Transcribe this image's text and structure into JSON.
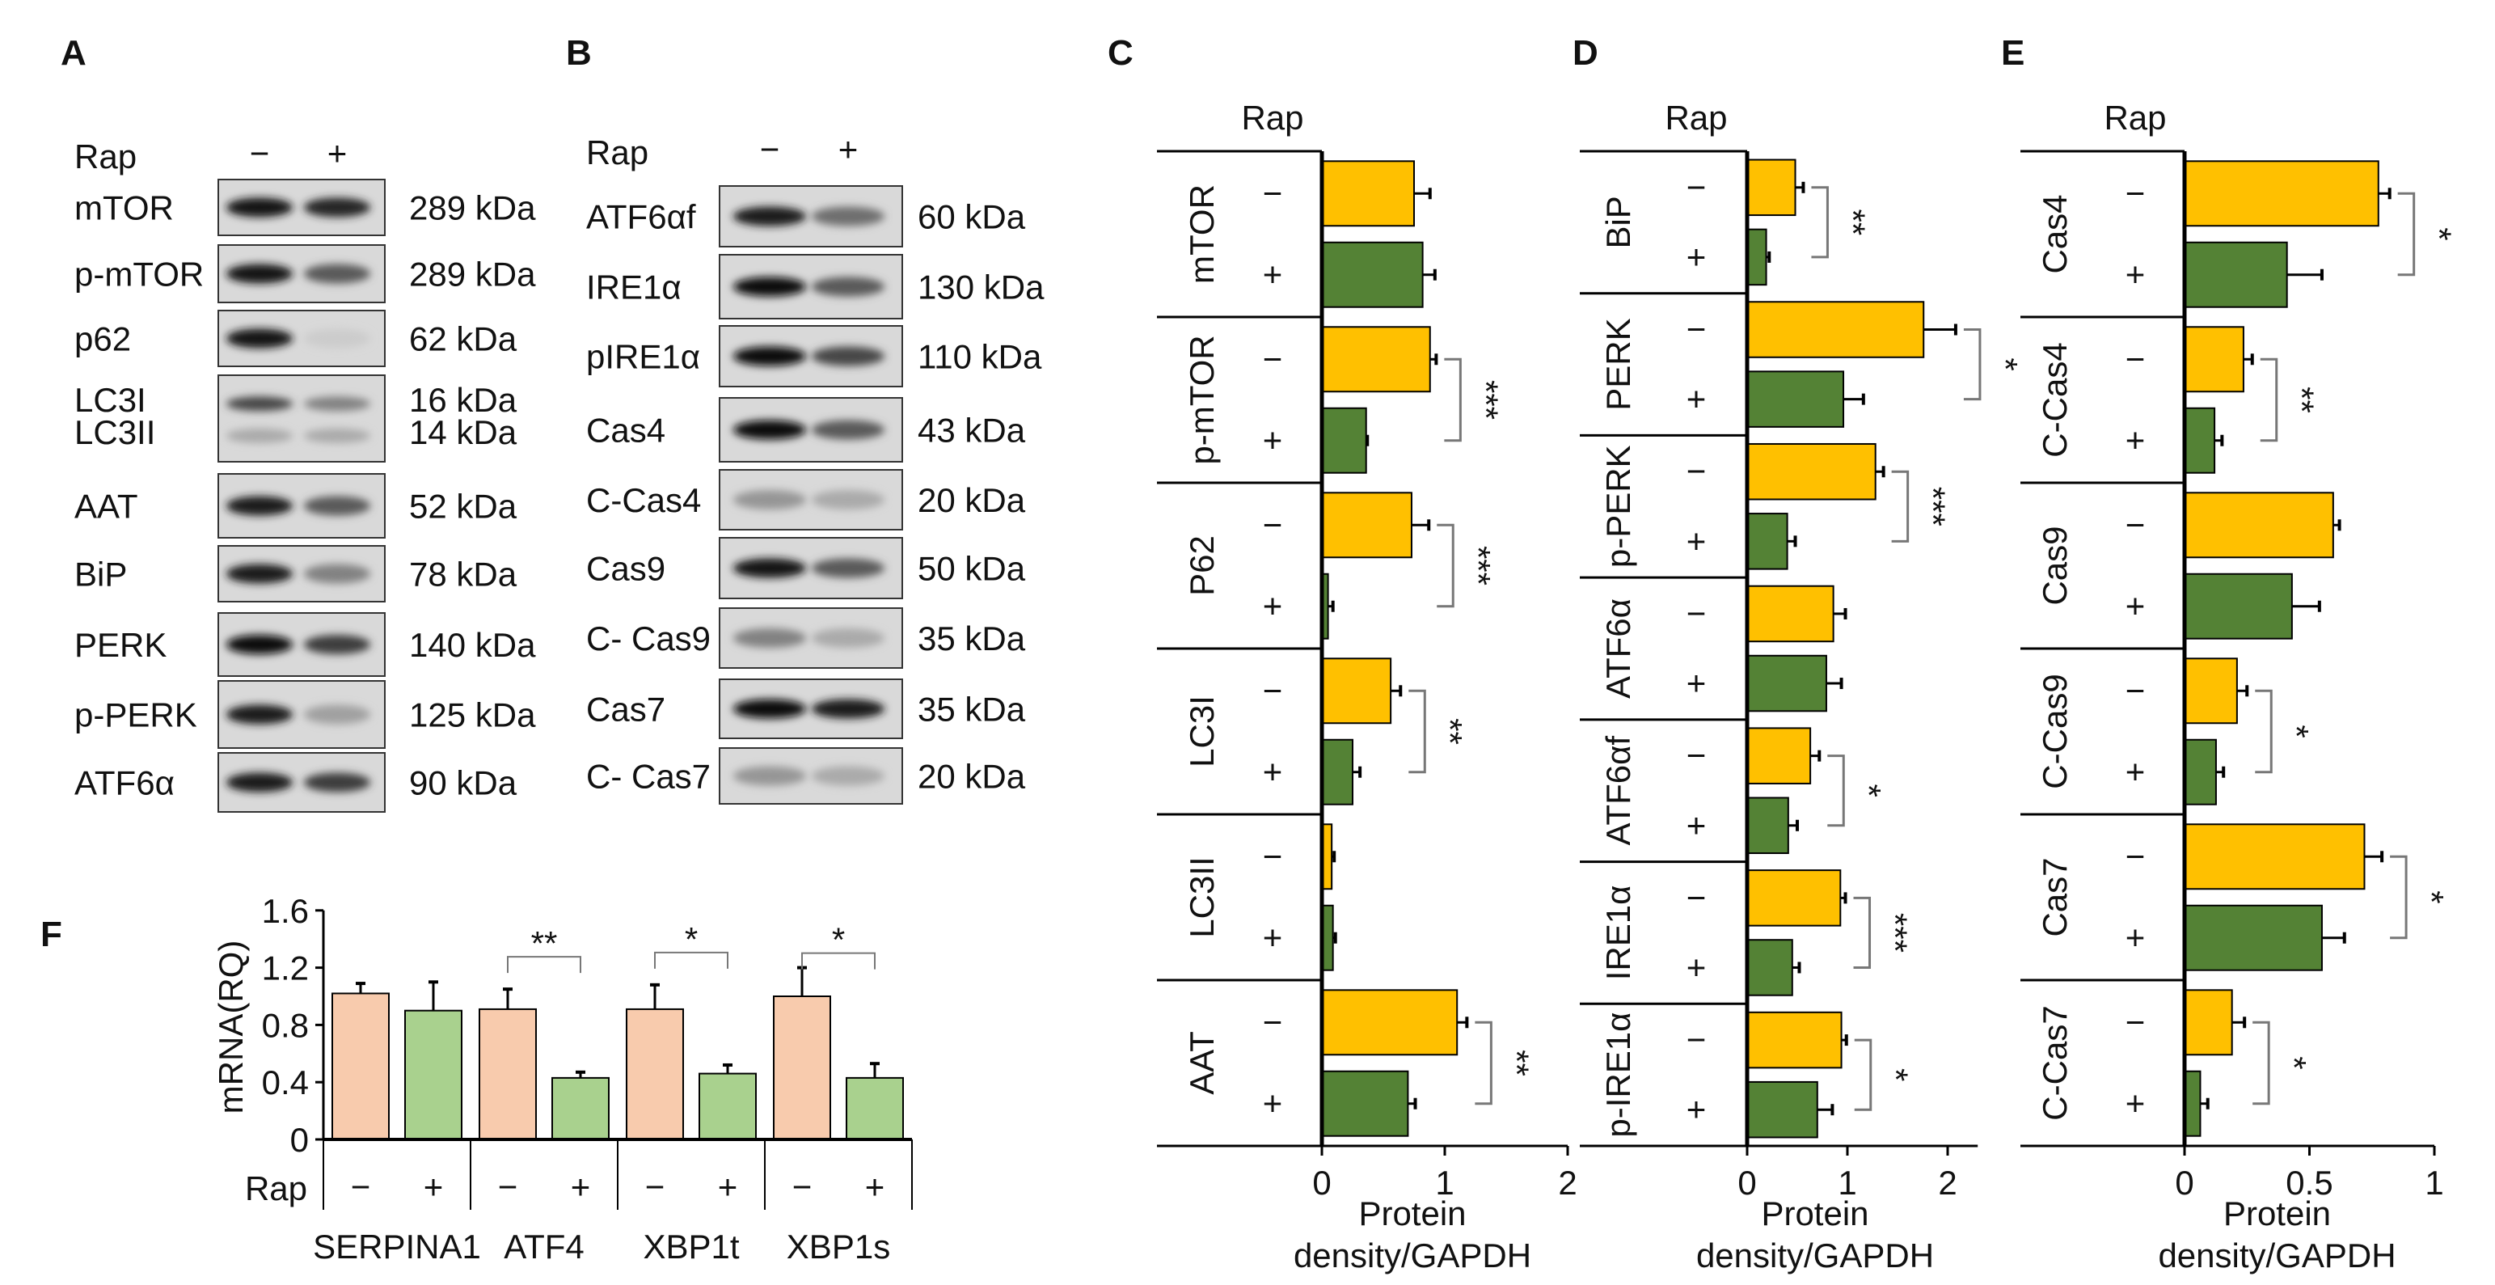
{
  "colors": {
    "minus_bar": "#FFC000",
    "plus_bar": "#548235",
    "f_minus": "#F8CBAD",
    "f_plus": "#A9D18E"
  },
  "panel_a": {
    "letter": "A",
    "rap_label": "Rap",
    "minus": "−",
    "plus": "+",
    "rows": [
      {
        "label": "mTOR",
        "kda": "289 kDa"
      },
      {
        "label": "p-mTOR",
        "kda": "289 kDa"
      },
      {
        "label": "p62",
        "kda": "62 kDa"
      },
      {
        "label": "LC3I",
        "kda": "16 kDa",
        "label2": "LC3II",
        "kda2": "14 kDa"
      },
      {
        "label": "AAT",
        "kda": "52 kDa"
      },
      {
        "label": "BiP",
        "kda": "78 kDa"
      },
      {
        "label": "PERK",
        "kda": "140 kDa"
      },
      {
        "label": "p-PERK",
        "kda": "125 kDa"
      },
      {
        "label": "ATF6α",
        "kda": "90 kDa"
      }
    ]
  },
  "panel_b": {
    "letter": "B",
    "rap_label": "Rap",
    "minus": "−",
    "plus": "+",
    "rows": [
      {
        "label": "ATF6αf",
        "kda": "60 kDa"
      },
      {
        "label": "IRE1α",
        "kda": "130 kDa"
      },
      {
        "label": "pIRE1α",
        "kda": "110 kDa"
      },
      {
        "label": "Cas4",
        "kda": "43 kDa"
      },
      {
        "label": "C-Cas4",
        "kda": "20 kDa"
      },
      {
        "label": "Cas9",
        "kda": "50 kDa"
      },
      {
        "label": "C- Cas9",
        "kda": "35 kDa"
      },
      {
        "label": "Cas7",
        "kda": "35 kDa"
      },
      {
        "label": "C- Cas7",
        "kda": "20 kDa"
      }
    ]
  },
  "chart_data": [
    {
      "panel": "C",
      "type": "bar",
      "orientation": "horizontal",
      "title": "Rap",
      "categories": [
        "mTOR",
        "p-mTOR",
        "P62",
        "LC3I",
        "LC3II",
        "AAT"
      ],
      "condition_labels": [
        "−",
        "+"
      ],
      "series": [
        {
          "name": "Rap −",
          "values": [
            0.75,
            0.88,
            0.73,
            0.56,
            0.08,
            1.1
          ],
          "errors": [
            0.13,
            0.05,
            0.14,
            0.08,
            0.02,
            0.08
          ]
        },
        {
          "name": "Rap +",
          "values": [
            0.82,
            0.36,
            0.05,
            0.25,
            0.09,
            0.7
          ],
          "errors": [
            0.1,
            0.01,
            0.04,
            0.06,
            0.02,
            0.06
          ]
        }
      ],
      "significance": [
        "",
        "***",
        "***",
        "**",
        "",
        "**"
      ],
      "xlim": [
        0,
        2
      ],
      "xticks": [
        "0",
        "1",
        "2"
      ],
      "xlabel": [
        "Protein",
        "density/GAPDH"
      ]
    },
    {
      "panel": "D",
      "type": "bar",
      "orientation": "horizontal",
      "title": "Rap",
      "categories": [
        "BiP",
        "PERK",
        "p-PERK",
        "ATF6α",
        "ATF6αf",
        "IRE1α",
        "p-IRE1α"
      ],
      "condition_labels": [
        "−",
        "+"
      ],
      "series": [
        {
          "name": "Rap −",
          "values": [
            0.48,
            1.76,
            1.28,
            0.86,
            0.63,
            0.93,
            0.94
          ],
          "errors": [
            0.08,
            0.32,
            0.08,
            0.12,
            0.09,
            0.05,
            0.05
          ]
        },
        {
          "name": "Rap +",
          "values": [
            0.19,
            0.96,
            0.4,
            0.79,
            0.41,
            0.45,
            0.7
          ],
          "errors": [
            0.03,
            0.2,
            0.08,
            0.15,
            0.09,
            0.07,
            0.15
          ]
        }
      ],
      "significance": [
        "**",
        "*",
        "***",
        "",
        "*",
        "***",
        "*"
      ],
      "xlim": [
        0,
        2.3
      ],
      "xticks": [
        "0",
        "1",
        "2"
      ],
      "xlabel": [
        "Protein",
        "density/GAPDH"
      ]
    },
    {
      "panel": "E",
      "type": "bar",
      "orientation": "horizontal",
      "title": "Rap",
      "categories": [
        "Cas4",
        "C-Cas4",
        "Cas9",
        "C-Cas9",
        "Cas7",
        "C-Cas7"
      ],
      "condition_labels": [
        "−",
        "+"
      ],
      "series": [
        {
          "name": "Rap −",
          "values": [
            0.776,
            0.236,
            0.595,
            0.21,
            0.72,
            0.19
          ],
          "errors": [
            0.045,
            0.035,
            0.025,
            0.04,
            0.07,
            0.05
          ]
        },
        {
          "name": "Rap +",
          "values": [
            0.41,
            0.12,
            0.43,
            0.126,
            0.55,
            0.063
          ],
          "errors": [
            0.14,
            0.03,
            0.11,
            0.03,
            0.09,
            0.03
          ]
        }
      ],
      "significance": [
        "*",
        "**",
        "",
        "*",
        "*",
        "*"
      ],
      "xlim": [
        0,
        1
      ],
      "xticks": [
        "0",
        "0.5",
        "1"
      ],
      "xlabel": [
        "Protein",
        "density/GAPDH"
      ]
    },
    {
      "panel": "F",
      "type": "bar",
      "orientation": "vertical",
      "title": "",
      "categories": [
        "SERPINA1",
        "ATF4",
        "XBP1t",
        "XBP1s"
      ],
      "row_label": "Rap",
      "condition_labels": [
        "−",
        "+"
      ],
      "series": [
        {
          "name": "Rap −",
          "values": [
            1.02,
            0.91,
            0.91,
            1.0
          ],
          "errors": [
            0.07,
            0.14,
            0.17,
            0.2
          ]
        },
        {
          "name": "Rap +",
          "values": [
            0.9,
            0.43,
            0.46,
            0.43
          ],
          "errors": [
            0.2,
            0.04,
            0.06,
            0.1
          ]
        }
      ],
      "significance": [
        "",
        "**",
        "*",
        "*"
      ],
      "ylim": [
        0,
        1.6
      ],
      "yticks": [
        "0",
        "0.4",
        "0.8",
        "1.2",
        "1.6"
      ],
      "ylabel": "mRNA(RQ)"
    }
  ]
}
